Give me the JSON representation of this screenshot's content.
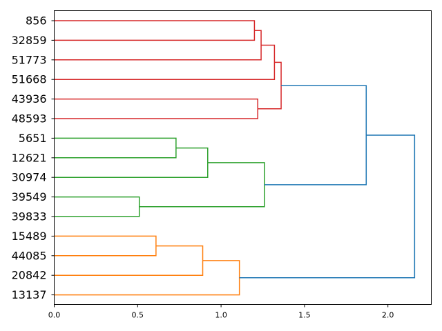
{
  "chart_data": {
    "type": "dendrogram",
    "orientation": "horizontal",
    "xlim": [
      0,
      2.26
    ],
    "x_ticks": [
      0.0,
      0.5,
      1.0,
      1.5,
      2.0
    ],
    "x_tick_labels": [
      "0.0",
      "0.5",
      "1.0",
      "1.5",
      "2.0"
    ],
    "leaves": [
      "856",
      "32859",
      "51773",
      "51668",
      "43936",
      "48593",
      "5651",
      "12621",
      "30974",
      "39549",
      "39833",
      "15489",
      "44085",
      "20842",
      "13137"
    ],
    "colors": {
      "red": "#d62728",
      "green": "#2ca02c",
      "orange": "#ff7f0e",
      "blue": "#1f77b4"
    },
    "merges": [
      {
        "a": "L0",
        "b": "L1",
        "height": 1.2,
        "color": "red"
      },
      {
        "a": "M0",
        "b": "L2",
        "height": 1.24,
        "color": "red"
      },
      {
        "a": "M1",
        "b": "L3",
        "height": 1.32,
        "color": "red"
      },
      {
        "a": "L4",
        "b": "L5",
        "height": 1.22,
        "color": "red"
      },
      {
        "a": "M2",
        "b": "M3",
        "height": 1.36,
        "color": "red"
      },
      {
        "a": "L6",
        "b": "L7",
        "height": 0.73,
        "color": "green"
      },
      {
        "a": "M5",
        "b": "L8",
        "height": 0.92,
        "color": "green"
      },
      {
        "a": "L9",
        "b": "L10",
        "height": 0.51,
        "color": "green"
      },
      {
        "a": "M6",
        "b": "M7",
        "height": 1.26,
        "color": "green"
      },
      {
        "a": "L11",
        "b": "L12",
        "height": 0.61,
        "color": "orange"
      },
      {
        "a": "M9",
        "b": "L13",
        "height": 0.89,
        "color": "orange"
      },
      {
        "a": "M10",
        "b": "L14",
        "height": 1.11,
        "color": "orange"
      },
      {
        "a": "M4",
        "b": "M8",
        "height": 1.87,
        "color": "blue"
      },
      {
        "a": "M12",
        "b": "M11",
        "height": 2.16,
        "color": "blue"
      }
    ]
  }
}
